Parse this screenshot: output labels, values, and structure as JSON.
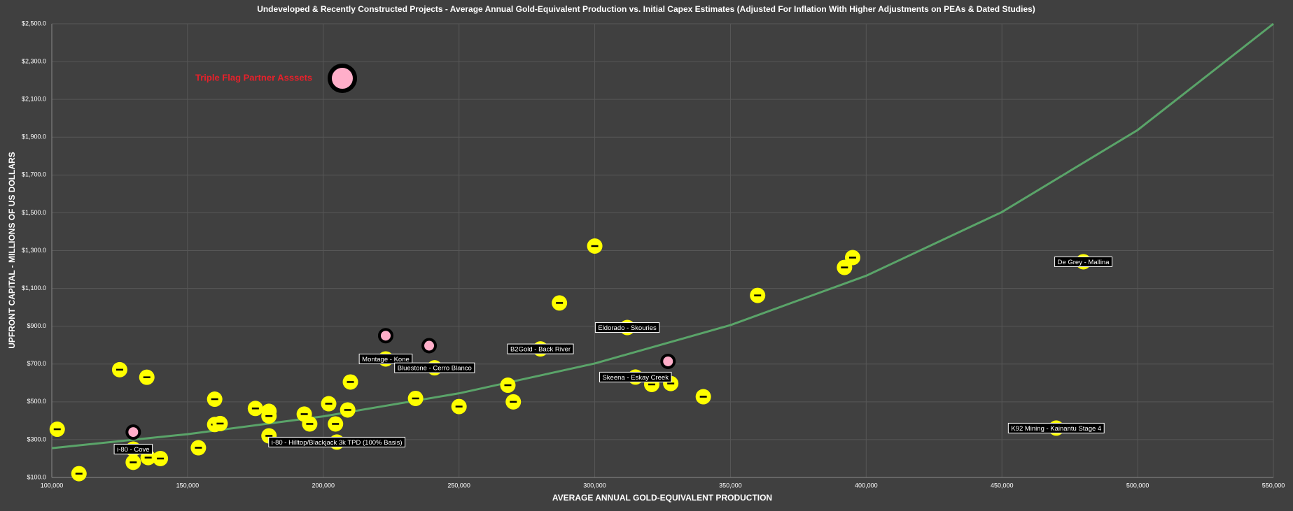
{
  "chart_data": {
    "type": "scatter",
    "title": "Undeveloped & Recently Constructed Projects - Average Annual Gold-Equivalent Production vs. Initial Capex Estimates (Adjusted For Inflation With Higher Adjustments on PEAs & Dated Studies)",
    "x_label": "AVERAGE ANNUAL GOLD-EQUIVALENT PRODUCTION",
    "y_label": "UPFRONT CAPITAL - MILLIONS OF US DOLLARS",
    "xlim": [
      100000,
      550000
    ],
    "ylim": [
      100,
      2500
    ],
    "xticks": [
      {
        "value": 100000,
        "label": "100,000"
      },
      {
        "value": 150000,
        "label": "150,000"
      },
      {
        "value": 200000,
        "label": "200,000"
      },
      {
        "value": 250000,
        "label": "250,000"
      },
      {
        "value": 300000,
        "label": "300,000"
      },
      {
        "value": 350000,
        "label": "350,000"
      },
      {
        "value": 400000,
        "label": "400,000"
      },
      {
        "value": 450000,
        "label": "450,000"
      },
      {
        "value": 500000,
        "label": "500,000"
      },
      {
        "value": 550000,
        "label": "550,000"
      }
    ],
    "yticks": [
      {
        "value": 100,
        "label": "$100.0"
      },
      {
        "value": 300,
        "label": "$300.0"
      },
      {
        "value": 500,
        "label": "$500.0"
      },
      {
        "value": 700,
        "label": "$700.0"
      },
      {
        "value": 900,
        "label": "$900.0"
      },
      {
        "value": 1100,
        "label": "$1,100.0"
      },
      {
        "value": 1300,
        "label": "$1,300.0"
      },
      {
        "value": 1500,
        "label": "$1,500.0"
      },
      {
        "value": 1700,
        "label": "$1,700.0"
      },
      {
        "value": 1900,
        "label": "$1,900.0"
      },
      {
        "value": 2100,
        "label": "$2,100.0"
      },
      {
        "value": 2300,
        "label": "$2,300.0"
      },
      {
        "value": 2500,
        "label": "$2,500.0"
      }
    ],
    "grid": true,
    "legend": "upper left",
    "series": [
      {
        "color": "#ffff00",
        "x": [
          102000,
          110000,
          125000,
          135000,
          130000,
          130000,
          135500,
          140000,
          154000,
          160000,
          160000,
          162000,
          175000,
          180000,
          180000,
          180000,
          193000,
          195000,
          202000,
          204500,
          205000,
          209000,
          210000,
          223000,
          234000,
          241000,
          250000,
          268000,
          270000,
          280000,
          287000,
          300000,
          312000,
          315000,
          321000,
          328000,
          340000,
          360000,
          392000,
          395000,
          470000,
          480000
        ],
        "values": [
          355,
          120,
          670,
          630,
          250,
          180,
          205,
          200,
          257,
          514,
          380,
          385,
          465,
          450,
          425,
          320,
          435,
          383,
          490,
          383,
          287,
          457,
          605,
          727,
          518,
          680,
          475,
          588,
          500,
          780,
          1023,
          1324,
          893,
          631,
          592,
          597,
          527,
          1063,
          1211,
          1263,
          361,
          1241
        ],
        "labels": [
          null,
          null,
          null,
          null,
          "i-80 - Cove",
          null,
          null,
          null,
          null,
          null,
          null,
          null,
          null,
          null,
          null,
          null,
          null,
          null,
          null,
          null,
          "i-80 - Hilltop/Blackjack 3k TPD (100% Basis)",
          null,
          null,
          "Montage - Kone",
          null,
          "Bluestone - Cerro Blanco",
          null,
          null,
          null,
          "B2Gold - Back River",
          null,
          null,
          "Eldorado - Skouries",
          "Skeena - Eskay Creek",
          null,
          null,
          null,
          null,
          null,
          null,
          "K92 Mining - Kainantu Stage 4",
          "De Grey - Mallina"
        ]
      },
      {
        "name": "Triple Flag Partner Asssets",
        "color": "#ffaec9",
        "x": [
          130000,
          223000,
          239000,
          327000
        ],
        "values": [
          340,
          850,
          797,
          714
        ]
      }
    ],
    "trendline": {
      "color": "#5aa469",
      "x": [
        100000,
        150000,
        200000,
        250000,
        300000,
        350000,
        400000,
        450000,
        500000,
        550000
      ],
      "values": [
        255,
        329,
        423,
        545,
        703,
        906,
        1167,
        1504,
        1938,
        2500
      ]
    }
  }
}
